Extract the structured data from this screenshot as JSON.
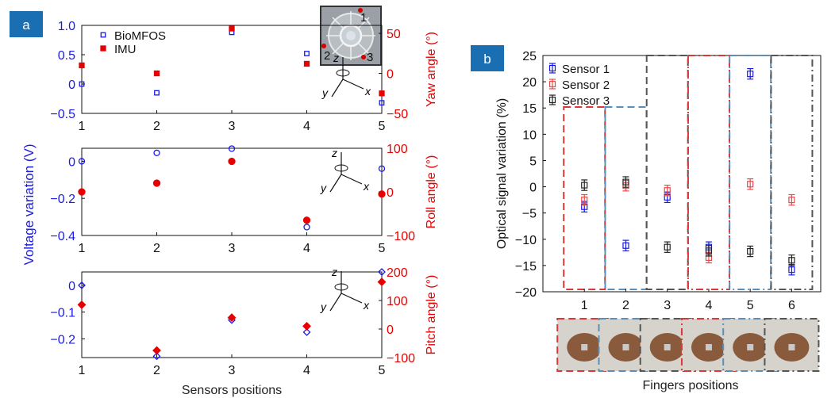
{
  "colors": {
    "badge": "#1a6fb3",
    "blue": "#1a1ae6",
    "red": "#e60000",
    "black": "#222222"
  },
  "panel_a": {
    "badge": "a",
    "left_label": "Voltage variation (V)",
    "bottom_label": "Sensors positions",
    "inset_labels": [
      "1",
      "2",
      "3"
    ]
  },
  "panel_b": {
    "badge": "b",
    "bottom_label": "Fingers positions",
    "photo_description_icons": [
      "hand-photo-icon"
    ]
  },
  "chart_data": [
    {
      "type": "scatter",
      "xlim": [
        1,
        5
      ],
      "xticks": [
        "1",
        "2",
        "3",
        "4",
        "5"
      ],
      "ylim": [
        -0.5,
        1.0
      ],
      "yticks": [
        "−0.5",
        "0",
        "0.5",
        "1.0"
      ],
      "y2label": "Yaw angle (°)",
      "y2lim": [
        -50,
        60
      ],
      "y2ticks": [
        "−50",
        "0",
        "50"
      ],
      "axis_letters": [
        "z",
        "y",
        "x"
      ],
      "series": [
        {
          "name": "BioMFOS",
          "axis": "left",
          "marker": "square-open",
          "x": [
            1,
            2,
            3,
            4,
            5
          ],
          "y": [
            0.0,
            -0.15,
            0.88,
            0.52,
            -0.32
          ]
        },
        {
          "name": "IMU",
          "axis": "right",
          "marker": "square-filled",
          "x": [
            1,
            2,
            3,
            4,
            5
          ],
          "y": [
            10,
            0,
            56,
            12,
            -25
          ]
        }
      ]
    },
    {
      "type": "scatter",
      "xlim": [
        1,
        5
      ],
      "xticks": [
        "1",
        "2",
        "3",
        "4",
        "5"
      ],
      "ylim": [
        -0.4,
        0.07
      ],
      "yticks": [
        "−0.4",
        "−0.2",
        "0"
      ],
      "y2label": "Roll angle (°)",
      "y2lim": [
        -100,
        100
      ],
      "y2ticks": [
        "−100",
        "0",
        "100"
      ],
      "axis_letters": [
        "z",
        "y",
        "x"
      ],
      "series": [
        {
          "name": "BioMFOS",
          "axis": "left",
          "marker": "circle-open",
          "x": [
            1,
            2,
            3,
            4,
            5
          ],
          "y": [
            0.0,
            0.045,
            0.068,
            -0.355,
            -0.04
          ]
        },
        {
          "name": "IMU",
          "axis": "right",
          "marker": "circle-filled",
          "x": [
            1,
            2,
            3,
            4,
            5
          ],
          "y": [
            0,
            20,
            70,
            -65,
            -5
          ]
        }
      ]
    },
    {
      "type": "scatter",
      "xlim": [
        1,
        5
      ],
      "xticks": [
        "1",
        "2",
        "3",
        "4",
        "5"
      ],
      "ylim": [
        -0.27,
        0.05
      ],
      "yticks": [
        "−0.2",
        "−0.1",
        "0"
      ],
      "ylabel_shared": "Voltage variation (V)",
      "y2label": "Pitch angle (°)",
      "y2lim": [
        -100,
        200
      ],
      "y2ticks": [
        "−100",
        "0",
        "100",
        "200"
      ],
      "axis_letters": [
        "z",
        "y",
        "x"
      ],
      "xlabel": "Sensors positions",
      "series": [
        {
          "name": "BioMFOS",
          "axis": "left",
          "marker": "diamond-open",
          "x": [
            1,
            2,
            3,
            4,
            5
          ],
          "y": [
            0.0,
            -0.265,
            -0.13,
            -0.175,
            0.05
          ]
        },
        {
          "name": "IMU",
          "axis": "right",
          "marker": "diamond-filled",
          "x": [
            1,
            2,
            3,
            4,
            5
          ],
          "y": [
            85,
            -75,
            40,
            10,
            165
          ]
        }
      ]
    },
    {
      "type": "scatter",
      "xlim": [
        0,
        6.7
      ],
      "xticks": [
        "1",
        "2",
        "3",
        "4",
        "5",
        "6"
      ],
      "ylim": [
        -20,
        25
      ],
      "yticks": [
        "−20",
        "−15",
        "−10",
        "−5",
        "0",
        "5",
        "10",
        "15",
        "20",
        "25"
      ],
      "ylabel": "Optical signal variation (%)",
      "xlabel": "Fingers positions",
      "series": [
        {
          "name": "Sensor 1",
          "color": "#1a1ae6",
          "x": [
            1,
            2,
            3,
            4,
            5,
            6
          ],
          "y": [
            -3.8,
            -11.2,
            -2.0,
            -11.5,
            21.5,
            -15.8
          ],
          "err": [
            1.0,
            1.0,
            1.0,
            1.0,
            1.0,
            1.0
          ]
        },
        {
          "name": "Sensor 2",
          "color": "#e84a4a",
          "x": [
            1,
            2,
            3,
            4,
            5,
            6
          ],
          "y": [
            -2.5,
            0.2,
            -0.7,
            -13.5,
            0.5,
            -2.5
          ],
          "err": [
            1.0,
            1.0,
            1.0,
            1.0,
            1.0,
            1.0
          ]
        },
        {
          "name": "Sensor 3",
          "color": "#222222",
          "x": [
            1,
            2,
            3,
            4,
            5,
            6
          ],
          "y": [
            0.3,
            0.9,
            -11.5,
            -12.2,
            -12.3,
            -14.0
          ],
          "err": [
            1.0,
            1.0,
            1.0,
            1.0,
            1.0,
            1.0
          ]
        }
      ]
    }
  ]
}
